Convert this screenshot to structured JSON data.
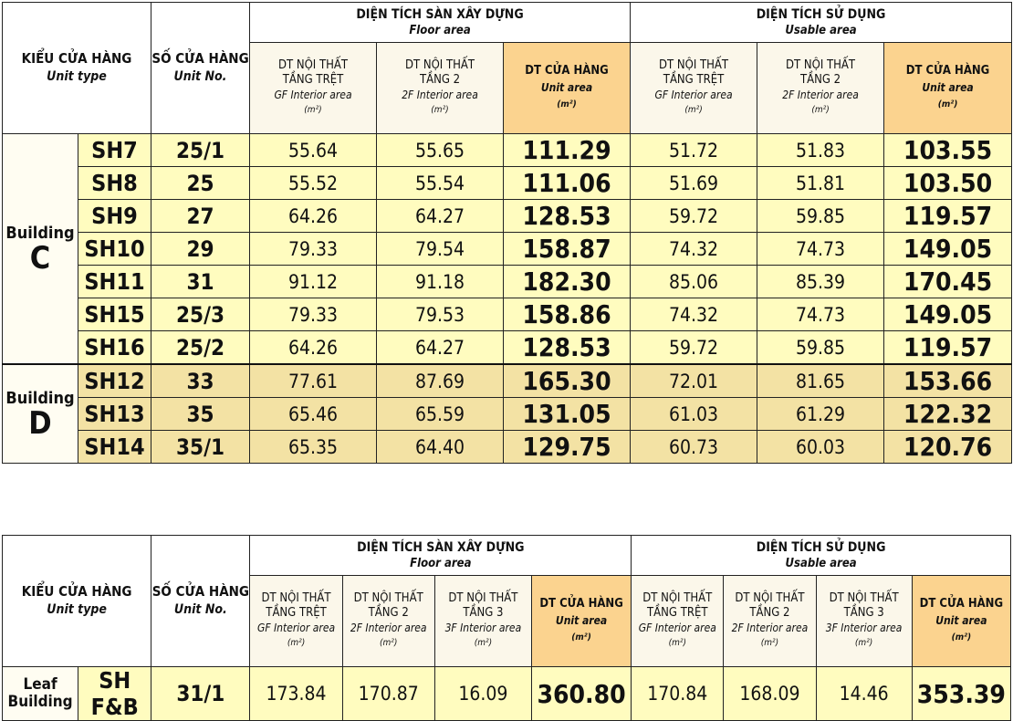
{
  "table1": {
    "unit_type_vi": "KIỂU CỬA HÀNG",
    "unit_type_en": "Unit type",
    "unit_no_vi": "SỐ CỬA HÀNG",
    "unit_no_en": "Unit No.",
    "floor_area_vi": "DIỆN TÍCH SÀN XÂY DỰNG",
    "floor_area_en": "Floor area",
    "usable_area_vi": "DIỆN TÍCH SỬ DỤNG",
    "usable_area_en": "Usable area",
    "sub": {
      "gf_vi": "DT NỘI THẤT TẦNG TRỆT",
      "gf_en": "GF Interior area",
      "f2_vi": "DT NỘI THẤT TẦNG 2",
      "f2_en": "2F Interior area",
      "unit_vi": "DT CỬA HÀNG",
      "unit_en": "Unit area",
      "m2": "(m²)"
    },
    "building_c": {
      "word": "Building",
      "letter": "C"
    },
    "building_d": {
      "word": "Building",
      "letter": "D"
    },
    "rows": [
      {
        "code": "SH7",
        "no": "25/1",
        "f_gf": "55.64",
        "f_2f": "55.65",
        "f_unit": "111.29",
        "u_gf": "51.72",
        "u_2f": "51.83",
        "u_unit": "103.55"
      },
      {
        "code": "SH8",
        "no": "25",
        "f_gf": "55.52",
        "f_2f": "55.54",
        "f_unit": "111.06",
        "u_gf": "51.69",
        "u_2f": "51.81",
        "u_unit": "103.50"
      },
      {
        "code": "SH9",
        "no": "27",
        "f_gf": "64.26",
        "f_2f": "64.27",
        "f_unit": "128.53",
        "u_gf": "59.72",
        "u_2f": "59.85",
        "u_unit": "119.57"
      },
      {
        "code": "SH10",
        "no": "29",
        "f_gf": "79.33",
        "f_2f": "79.54",
        "f_unit": "158.87",
        "u_gf": "74.32",
        "u_2f": "74.73",
        "u_unit": "149.05"
      },
      {
        "code": "SH11",
        "no": "31",
        "f_gf": "91.12",
        "f_2f": "91.18",
        "f_unit": "182.30",
        "u_gf": "85.06",
        "u_2f": "85.39",
        "u_unit": "170.45"
      },
      {
        "code": "SH15",
        "no": "25/3",
        "f_gf": "79.33",
        "f_2f": "79.53",
        "f_unit": "158.86",
        "u_gf": "74.32",
        "u_2f": "74.73",
        "u_unit": "149.05"
      },
      {
        "code": "SH16",
        "no": "25/2",
        "f_gf": "64.26",
        "f_2f": "64.27",
        "f_unit": "128.53",
        "u_gf": "59.72",
        "u_2f": "59.85",
        "u_unit": "119.57"
      },
      {
        "code": "SH12",
        "no": "33",
        "f_gf": "77.61",
        "f_2f": "87.69",
        "f_unit": "165.30",
        "u_gf": "72.01",
        "u_2f": "81.65",
        "u_unit": "153.66"
      },
      {
        "code": "SH13",
        "no": "35",
        "f_gf": "65.46",
        "f_2f": "65.59",
        "f_unit": "131.05",
        "u_gf": "61.03",
        "u_2f": "61.29",
        "u_unit": "122.32"
      },
      {
        "code": "SH14",
        "no": "35/1",
        "f_gf": "65.35",
        "f_2f": "64.40",
        "f_unit": "129.75",
        "u_gf": "60.73",
        "u_2f": "60.03",
        "u_unit": "120.76"
      }
    ]
  },
  "table2": {
    "unit_type_vi": "KIỂU CỬA HÀNG",
    "unit_type_en": "Unit type",
    "unit_no_vi": "SỐ CỬA HÀNG",
    "unit_no_en": "Unit No.",
    "floor_area_vi": "DIỆN TÍCH SÀN XÂY DỰNG",
    "floor_area_en": "Floor area",
    "usable_area_vi": "DIỆN TÍCH SỬ DỤNG",
    "usable_area_en": "Usable area",
    "sub": {
      "gf_vi": "DT NỘI THẤT TẦNG TRỆT",
      "gf_en": "GF Interior area",
      "f2_vi": "DT NỘI THẤT TẦNG 2",
      "f2_en": "2F Interior area",
      "f3_vi": "DT NỘI THẤT TẦNG 3",
      "f3_en": "3F Interior area",
      "unit_vi": "DT CỬA HÀNG",
      "unit_en": "Unit area",
      "m2": "(m²)"
    },
    "building": {
      "line1": "Leaf",
      "line2": "Building"
    },
    "row": {
      "code": "SH F&B",
      "no": "31/1",
      "f_gf": "173.84",
      "f_2f": "170.87",
      "f_3f": "16.09",
      "f_unit": "360.80",
      "u_gf": "170.84",
      "u_2f": "168.09",
      "u_3f": "14.46",
      "u_unit": "353.39"
    }
  },
  "colors": {
    "row_c": "#fffcbf",
    "row_d": "#f3e2a4",
    "unit_header": "#fbd38f"
  }
}
